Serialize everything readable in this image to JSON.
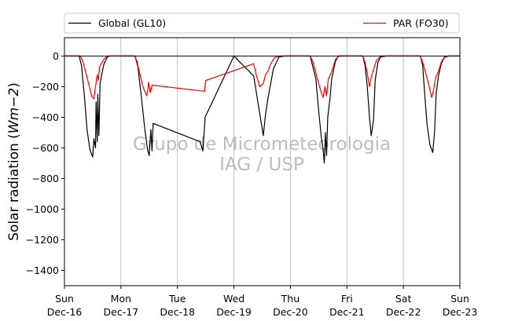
{
  "chart_data": {
    "type": "line",
    "ylabel_prefix": "Solar radiation (",
    "ylabel_math": "Wm−2",
    "ylabel_suffix": ")",
    "xlim": [
      0,
      7
    ],
    "ylim": [
      -1500,
      120
    ],
    "yticks": [
      0,
      -200,
      -400,
      -600,
      -800,
      -1000,
      -1200,
      -1400
    ],
    "ytick_labels": [
      "0",
      "−200",
      "−400",
      "−600",
      "−800",
      "−1000",
      "−1200",
      "−1400"
    ],
    "xticks": [
      {
        "day": 0,
        "dow": "Sun",
        "date": "Dec-16"
      },
      {
        "day": 1,
        "dow": "Mon",
        "date": "Dec-17"
      },
      {
        "day": 2,
        "dow": "Tue",
        "date": "Dec-18"
      },
      {
        "day": 3,
        "dow": "Wed",
        "date": "Dec-19"
      },
      {
        "day": 4,
        "dow": "Thu",
        "date": "Dec-20"
      },
      {
        "day": 5,
        "dow": "Fri",
        "date": "Dec-21"
      },
      {
        "day": 6,
        "dow": "Sat",
        "date": "Dec-22"
      },
      {
        "day": 7,
        "dow": "Sun",
        "date": "Dec-23"
      }
    ],
    "grid": "vertical",
    "legend_placement": "above",
    "watermark": [
      "Grupo de Micrometeorologia",
      "IAG / USP"
    ],
    "series": [
      {
        "name": "Global (GL10)",
        "color": "#000000",
        "points": [
          [
            0,
            0
          ],
          [
            0.26,
            0
          ],
          [
            0.3,
            -60
          ],
          [
            0.35,
            -250
          ],
          [
            0.4,
            -480
          ],
          [
            0.45,
            -610
          ],
          [
            0.5,
            -660
          ],
          [
            0.52,
            -540
          ],
          [
            0.55,
            -600
          ],
          [
            0.56,
            -300
          ],
          [
            0.58,
            -560
          ],
          [
            0.59,
            -250
          ],
          [
            0.61,
            -520
          ],
          [
            0.63,
            -180
          ],
          [
            0.66,
            -120
          ],
          [
            0.7,
            -50
          ],
          [
            0.76,
            -5
          ],
          [
            0.8,
            0
          ],
          [
            1.25,
            0
          ],
          [
            1.3,
            -70
          ],
          [
            1.36,
            -260
          ],
          [
            1.42,
            -470
          ],
          [
            1.47,
            -610
          ],
          [
            1.5,
            -650
          ],
          [
            1.53,
            -480
          ],
          [
            1.55,
            -620
          ],
          [
            1.57,
            -440
          ],
          [
            2.4,
            -560
          ],
          [
            2.45,
            -620
          ],
          [
            2.49,
            -400
          ],
          [
            3.0,
            0
          ],
          [
            3.35,
            -130
          ],
          [
            3.45,
            -360
          ],
          [
            3.52,
            -520
          ],
          [
            3.56,
            -380
          ],
          [
            3.6,
            -280
          ],
          [
            3.65,
            -180
          ],
          [
            3.7,
            -80
          ],
          [
            3.8,
            -5
          ],
          [
            3.9,
            0
          ],
          [
            4.35,
            0
          ],
          [
            4.45,
            -150
          ],
          [
            4.5,
            -360
          ],
          [
            4.55,
            -540
          ],
          [
            4.58,
            -610
          ],
          [
            4.6,
            -700
          ],
          [
            4.62,
            -500
          ],
          [
            4.64,
            -650
          ],
          [
            4.66,
            -400
          ],
          [
            4.7,
            -280
          ],
          [
            4.73,
            -150
          ],
          [
            4.8,
            -30
          ],
          [
            4.85,
            0
          ],
          [
            5.28,
            0
          ],
          [
            5.32,
            -60
          ],
          [
            5.36,
            -200
          ],
          [
            5.4,
            -400
          ],
          [
            5.43,
            -520
          ],
          [
            5.47,
            -420
          ],
          [
            5.5,
            -160
          ],
          [
            5.55,
            -40
          ],
          [
            5.6,
            -5
          ],
          [
            5.7,
            0
          ],
          [
            6.3,
            0
          ],
          [
            6.34,
            -60
          ],
          [
            6.38,
            -260
          ],
          [
            6.42,
            -450
          ],
          [
            6.47,
            -580
          ],
          [
            6.52,
            -630
          ],
          [
            6.55,
            -500
          ],
          [
            6.58,
            -250
          ],
          [
            6.62,
            -130
          ],
          [
            6.67,
            -50
          ],
          [
            6.73,
            -5
          ],
          [
            6.8,
            0
          ],
          [
            7.0,
            0
          ]
        ]
      },
      {
        "name": "PAR (FO30)",
        "color": "#ff0000",
        "points": [
          [
            0,
            0
          ],
          [
            0.28,
            0
          ],
          [
            0.32,
            -30
          ],
          [
            0.38,
            -110
          ],
          [
            0.44,
            -200
          ],
          [
            0.48,
            -260
          ],
          [
            0.52,
            -280
          ],
          [
            0.55,
            -200
          ],
          [
            0.58,
            -120
          ],
          [
            0.6,
            -160
          ],
          [
            0.62,
            -70
          ],
          [
            0.65,
            -50
          ],
          [
            0.7,
            -20
          ],
          [
            0.76,
            0
          ],
          [
            0.82,
            0
          ],
          [
            1.24,
            0
          ],
          [
            1.28,
            -30
          ],
          [
            1.33,
            -110
          ],
          [
            1.38,
            -190
          ],
          [
            1.42,
            -230
          ],
          [
            1.46,
            -260
          ],
          [
            1.49,
            -170
          ],
          [
            1.52,
            -240
          ],
          [
            1.55,
            -190
          ],
          [
            2.48,
            -230
          ],
          [
            2.5,
            -160
          ],
          [
            3.35,
            -50
          ],
          [
            3.4,
            -130
          ],
          [
            3.46,
            -200
          ],
          [
            3.52,
            -180
          ],
          [
            3.56,
            -120
          ],
          [
            3.6,
            -100
          ],
          [
            3.65,
            -50
          ],
          [
            3.72,
            -10
          ],
          [
            3.8,
            0
          ],
          [
            4.35,
            0
          ],
          [
            4.4,
            -40
          ],
          [
            4.45,
            -110
          ],
          [
            4.5,
            -180
          ],
          [
            4.54,
            -230
          ],
          [
            4.58,
            -270
          ],
          [
            4.61,
            -200
          ],
          [
            4.64,
            -260
          ],
          [
            4.67,
            -150
          ],
          [
            4.71,
            -120
          ],
          [
            4.75,
            -80
          ],
          [
            4.8,
            -20
          ],
          [
            4.86,
            0
          ],
          [
            5.28,
            0
          ],
          [
            5.32,
            -40
          ],
          [
            5.36,
            -110
          ],
          [
            5.4,
            -200
          ],
          [
            5.43,
            -140
          ],
          [
            5.46,
            -100
          ],
          [
            5.52,
            -30
          ],
          [
            5.6,
            0
          ],
          [
            6.3,
            0
          ],
          [
            6.35,
            -50
          ],
          [
            6.4,
            -120
          ],
          [
            6.45,
            -190
          ],
          [
            6.5,
            -270
          ],
          [
            6.53,
            -230
          ],
          [
            6.57,
            -140
          ],
          [
            6.62,
            -100
          ],
          [
            6.67,
            -40
          ],
          [
            6.72,
            -10
          ],
          [
            6.8,
            0
          ],
          [
            7.0,
            0
          ]
        ]
      }
    ]
  }
}
